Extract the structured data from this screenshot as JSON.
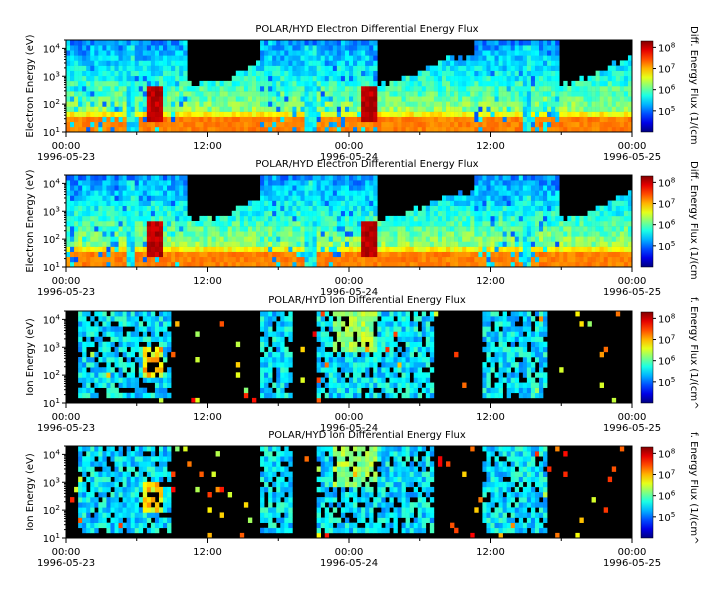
{
  "chart_data": [
    {
      "type": "heatmap",
      "title": "POLAR/HYD  Electron Differential Energy Flux",
      "ylabel": "Electron Energy (eV)",
      "colorbar_label": "Diff. Energy Flux (1/(cm",
      "x_ticks": [
        {
          "time": "00:00",
          "date": "1996-05-23"
        },
        {
          "time": "12:00",
          "date": ""
        },
        {
          "time": "00:00",
          "date": "1996-05-24"
        },
        {
          "time": "12:00",
          "date": ""
        },
        {
          "time": "00:00",
          "date": "1996-05-25"
        }
      ],
      "y_ticks": [
        "10^1",
        "10^2",
        "10^3",
        "10^4"
      ],
      "colorbar_ticks": [
        "10^5",
        "10^6",
        "10^7",
        "10^8"
      ],
      "xlim": [
        "1996-05-23 00:00",
        "1996-05-25 00:00"
      ],
      "ylim": [
        10,
        20000
      ],
      "yscale": "log",
      "clim": [
        10000,
        200000000
      ],
      "cscale": "log",
      "colormap": "jet",
      "background": "#000000"
    },
    {
      "type": "heatmap",
      "title": "POLAR/HYD  Electron Differential Energy Flux",
      "ylabel": "Electron Energy (eV)",
      "colorbar_label": "Diff. Energy Flux (1/(cm",
      "x_ticks": [
        {
          "time": "00:00",
          "date": "1996-05-23"
        },
        {
          "time": "12:00",
          "date": ""
        },
        {
          "time": "00:00",
          "date": "1996-05-24"
        },
        {
          "time": "12:00",
          "date": ""
        },
        {
          "time": "00:00",
          "date": "1996-05-25"
        }
      ],
      "y_ticks": [
        "10^1",
        "10^2",
        "10^3",
        "10^4"
      ],
      "colorbar_ticks": [
        "10^5",
        "10^6",
        "10^7",
        "10^8"
      ],
      "xlim": [
        "1996-05-23 00:00",
        "1996-05-25 00:00"
      ],
      "ylim": [
        10,
        20000
      ],
      "yscale": "log",
      "clim": [
        10000,
        200000000
      ],
      "cscale": "log",
      "colormap": "jet",
      "background": "#000000"
    },
    {
      "type": "heatmap",
      "title": "POLAR/HYD  Ion Differential Energy Flux",
      "ylabel": "Ion Energy (eV)",
      "colorbar_label": "f. Energy Flux (1/(cm^",
      "x_ticks": [
        {
          "time": "00:00",
          "date": "1996-05-23"
        },
        {
          "time": "12:00",
          "date": ""
        },
        {
          "time": "00:00",
          "date": "1996-05-24"
        },
        {
          "time": "12:00",
          "date": ""
        },
        {
          "time": "00:00",
          "date": "1996-05-25"
        }
      ],
      "y_ticks": [
        "10^1",
        "10^2",
        "10^3",
        "10^4"
      ],
      "colorbar_ticks": [
        "10^5",
        "10^6",
        "10^7",
        "10^8"
      ],
      "xlim": [
        "1996-05-23 00:00",
        "1996-05-25 00:00"
      ],
      "ylim": [
        10,
        20000
      ],
      "yscale": "log",
      "clim": [
        10000,
        200000000
      ],
      "cscale": "log",
      "colormap": "jet",
      "background": "#000000"
    },
    {
      "type": "heatmap",
      "title": "POLAR/HYD  Ion Differential Energy Flux",
      "ylabel": "Ion Energy (eV)",
      "colorbar_label": "f. Energy Flux (1/(cm^",
      "x_ticks": [
        {
          "time": "00:00",
          "date": "1996-05-23"
        },
        {
          "time": "12:00",
          "date": ""
        },
        {
          "time": "00:00",
          "date": "1996-05-24"
        },
        {
          "time": "12:00",
          "date": ""
        },
        {
          "time": "00:00",
          "date": "1996-05-25"
        }
      ],
      "y_ticks": [
        "10^1",
        "10^2",
        "10^3",
        "10^4"
      ],
      "colorbar_ticks": [
        "10^5",
        "10^6",
        "10^7",
        "10^8"
      ],
      "xlim": [
        "1996-05-23 00:00",
        "1996-05-25 00:00"
      ],
      "ylim": [
        10,
        20000
      ],
      "yscale": "log",
      "clim": [
        10000,
        200000000
      ],
      "cscale": "log",
      "colormap": "jet",
      "background": "#000000"
    }
  ]
}
